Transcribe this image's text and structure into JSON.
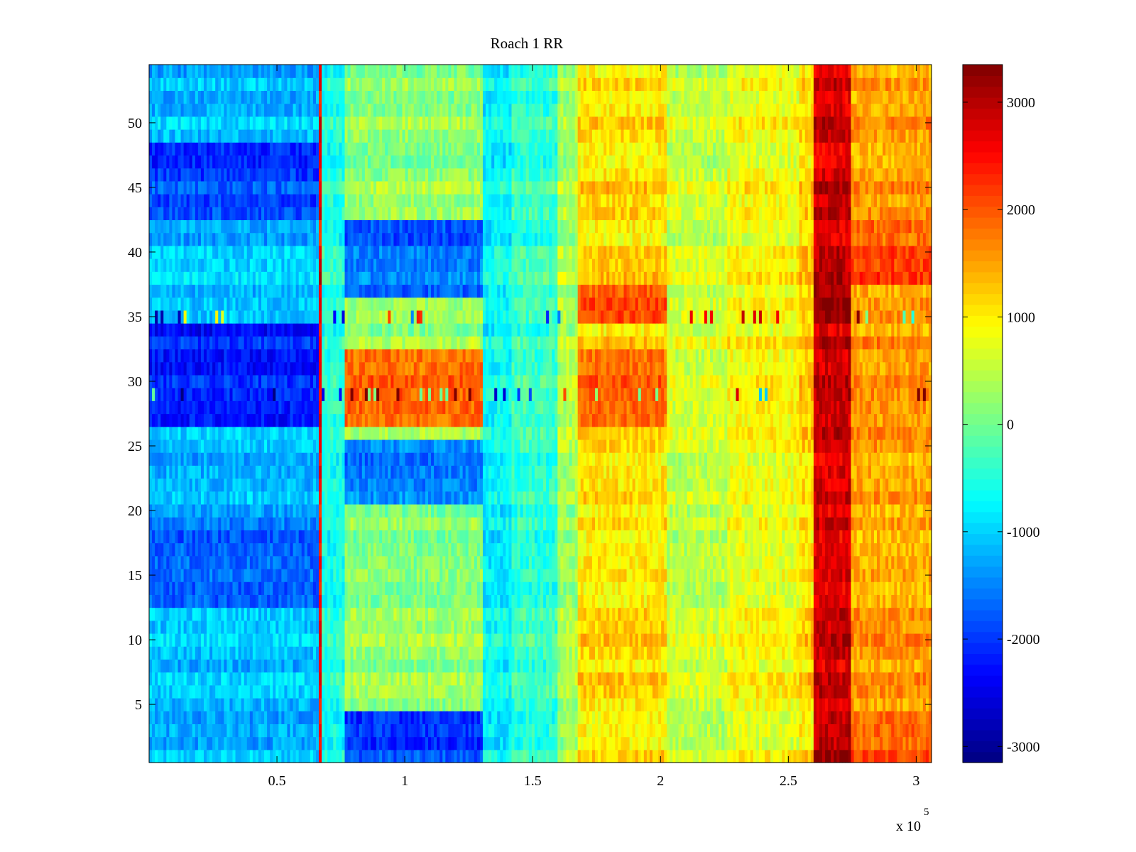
{
  "chart_data": {
    "type": "heatmap",
    "title": "Roach 1 RR",
    "xlabel": "",
    "ylabel": "",
    "x_multiplier_label": "x 10",
    "x_multiplier_exponent": "5",
    "xlim": [
      0,
      3.06
    ],
    "ylim": [
      0.5,
      54.5
    ],
    "x_ticks": [
      {
        "value": 0.5,
        "label": "0.5"
      },
      {
        "value": 1,
        "label": "1"
      },
      {
        "value": 1.5,
        "label": "1.5"
      },
      {
        "value": 2,
        "label": "2"
      },
      {
        "value": 2.5,
        "label": "2.5"
      },
      {
        "value": 3,
        "label": "3"
      }
    ],
    "y_ticks": [
      {
        "value": 5,
        "label": "5"
      },
      {
        "value": 10,
        "label": "10"
      },
      {
        "value": 15,
        "label": "15"
      },
      {
        "value": 20,
        "label": "20"
      },
      {
        "value": 25,
        "label": "25"
      },
      {
        "value": 30,
        "label": "30"
      },
      {
        "value": 35,
        "label": "35"
      },
      {
        "value": 40,
        "label": "40"
      },
      {
        "value": 45,
        "label": "45"
      },
      {
        "value": 50,
        "label": "50"
      }
    ],
    "colormap": "jet",
    "colorbar": {
      "clim": [
        -3150,
        3350
      ],
      "ticks": [
        {
          "value": 3000,
          "label": "3000"
        },
        {
          "value": 2000,
          "label": "2000"
        },
        {
          "value": 1000,
          "label": "1000"
        },
        {
          "value": 0,
          "label": "0"
        },
        {
          "value": -1000,
          "label": "-1000"
        },
        {
          "value": -2000,
          "label": "-2000"
        },
        {
          "value": -3000,
          "label": "-3000"
        }
      ]
    },
    "rows": 54,
    "column_regions": [
      {
        "x": [
          0.0,
          0.66
        ],
        "value": -1100
      },
      {
        "x": [
          0.66,
          0.67
        ],
        "value": 2600
      },
      {
        "x": [
          0.67,
          0.76
        ],
        "value": -500
      },
      {
        "x": [
          0.76,
          1.31
        ],
        "value": 250
      },
      {
        "x": [
          1.31,
          1.42
        ],
        "value": -700
      },
      {
        "x": [
          1.42,
          1.6
        ],
        "value": -350
      },
      {
        "x": [
          1.6,
          1.68
        ],
        "value": 400
      },
      {
        "x": [
          1.68,
          2.02
        ],
        "value": 1150
      },
      {
        "x": [
          2.02,
          2.26
        ],
        "value": 600
      },
      {
        "x": [
          2.26,
          2.54
        ],
        "value": 900
      },
      {
        "x": [
          2.54,
          2.6
        ],
        "value": 1200
      },
      {
        "x": [
          2.6,
          2.74
        ],
        "value": 2850
      },
      {
        "x": [
          2.74,
          3.06
        ],
        "value": 1550
      }
    ],
    "row_regions": [
      {
        "rows": [
          1,
          4
        ],
        "x": [
          0.0,
          0.66
        ],
        "offset": 0
      },
      {
        "rows": [
          13,
          19
        ],
        "x": [
          0.0,
          0.66
        ],
        "offset": -450
      },
      {
        "rows": [
          27,
          34
        ],
        "x": [
          0.0,
          0.66
        ],
        "offset": -1100
      },
      {
        "rows": [
          43,
          48
        ],
        "x": [
          0.0,
          0.66
        ],
        "offset": -800
      },
      {
        "rows": [
          1,
          4
        ],
        "x": [
          0.76,
          1.31
        ],
        "offset": -2100
      },
      {
        "rows": [
          21,
          25
        ],
        "x": [
          0.76,
          1.31
        ],
        "offset": -1700
      },
      {
        "rows": [
          27,
          32
        ],
        "x": [
          0.76,
          1.31
        ],
        "offset": 1600
      },
      {
        "rows": [
          37,
          42
        ],
        "x": [
          0.76,
          1.31
        ],
        "offset": -1900
      },
      {
        "rows": [
          27,
          32
        ],
        "x": [
          1.68,
          2.02
        ],
        "offset": 700
      },
      {
        "rows": [
          35,
          37
        ],
        "x": [
          1.68,
          2.02
        ],
        "offset": 900
      },
      {
        "rows": [
          35,
          37
        ],
        "x": [
          2.6,
          2.74
        ],
        "offset": 400
      },
      {
        "rows": [
          1,
          4
        ],
        "x": [
          2.6,
          2.74
        ],
        "offset": 300
      },
      {
        "rows": [
          1,
          4
        ],
        "x": [
          2.74,
          3.06
        ],
        "offset": 500
      },
      {
        "rows": [
          38,
          42
        ],
        "x": [
          2.74,
          3.06
        ],
        "offset": 500
      }
    ]
  }
}
